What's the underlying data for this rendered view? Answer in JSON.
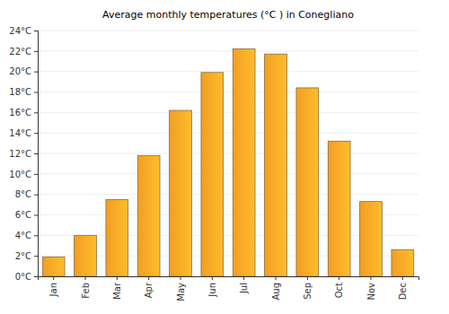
{
  "chart_data": {
    "type": "bar",
    "title": "Average monthly temperatures (°C ) in Conegliano",
    "categories": [
      "Jan",
      "Feb",
      "Mar",
      "Apr",
      "May",
      "Jun",
      "Jul",
      "Aug",
      "Sep",
      "Oct",
      "Nov",
      "Dec"
    ],
    "values": [
      1.9,
      4.0,
      7.5,
      11.8,
      16.2,
      19.9,
      22.2,
      21.7,
      18.4,
      13.2,
      7.3,
      2.6
    ],
    "color": "#ffa726",
    "ylim": [
      0,
      24
    ],
    "yticks": [
      {
        "value": 0,
        "label": "0°C"
      },
      {
        "value": 2,
        "label": "2°C"
      },
      {
        "value": 4,
        "label": "4°C"
      },
      {
        "value": 6,
        "label": "6°C"
      },
      {
        "value": 8,
        "label": "8°C"
      },
      {
        "value": 10,
        "label": "10°C"
      },
      {
        "value": 12,
        "label": "12°C"
      },
      {
        "value": 14,
        "label": "14°C"
      },
      {
        "value": 16,
        "label": "16°C"
      },
      {
        "value": 18,
        "label": "18°C"
      },
      {
        "value": 20,
        "label": "20°C"
      },
      {
        "value": 22,
        "label": "22°C"
      },
      {
        "value": 24,
        "label": "24°C"
      }
    ],
    "grid": true
  }
}
